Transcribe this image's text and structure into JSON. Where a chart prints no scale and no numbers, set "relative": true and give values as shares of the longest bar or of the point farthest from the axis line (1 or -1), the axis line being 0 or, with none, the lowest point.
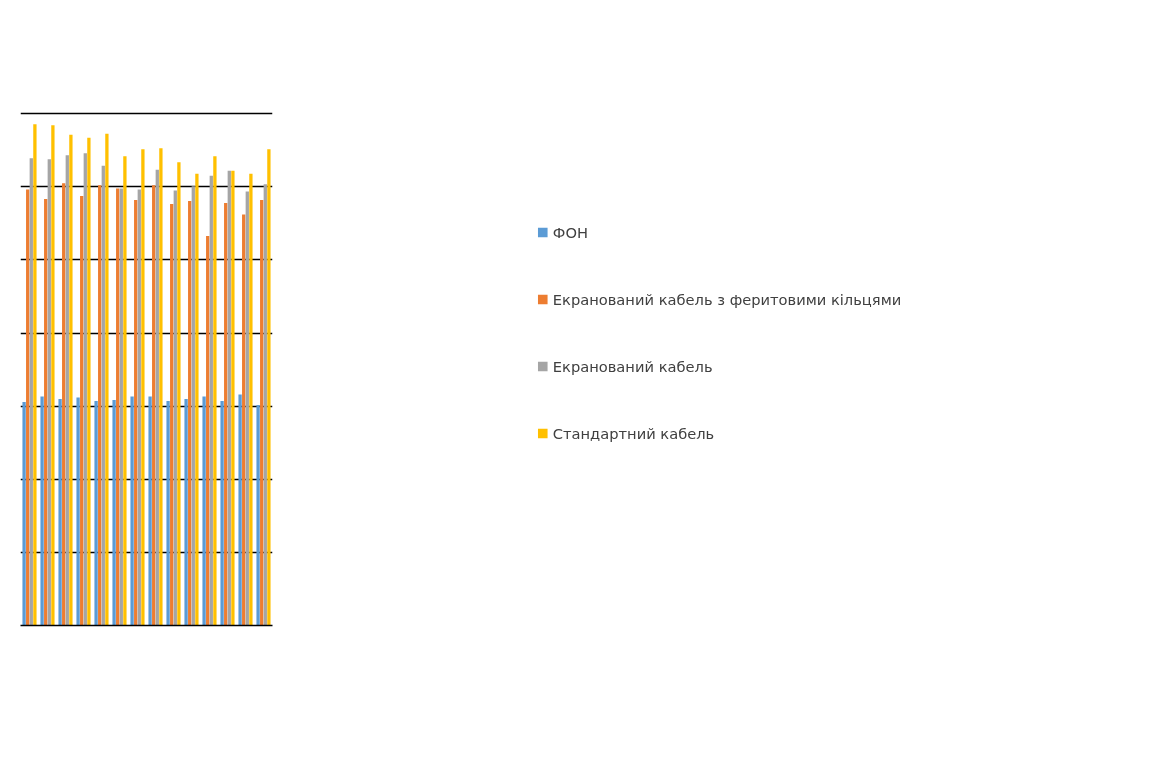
{
  "chart_data": {
    "type": "bar",
    "relative": true,
    "grid": "y",
    "legend": "right",
    "categories": [
      null,
      null,
      null,
      null,
      null,
      null,
      null,
      null,
      null,
      null,
      null,
      null,
      null,
      null
    ],
    "series": [
      {
        "name": "ФОН",
        "color": "#5b9bd5",
        "values": [
          0.446,
          0.457,
          0.452,
          0.455,
          0.448,
          0.45,
          0.457,
          0.457,
          0.448,
          0.452,
          0.457,
          0.448,
          0.461,
          0.44
        ]
      },
      {
        "name": "Екранований кабель з феритовими кільцями",
        "color": "#ed7d31",
        "values": [
          0.87,
          0.851,
          0.882,
          0.857,
          0.878,
          0.872,
          0.849,
          0.878,
          0.841,
          0.847,
          0.777,
          0.843,
          0.82,
          0.849
        ]
      },
      {
        "name": "Екранований кабель",
        "color": "#a5a5a5",
        "values": [
          0.932,
          0.93,
          0.938,
          0.942,
          0.917,
          0.872,
          0.87,
          0.909,
          0.868,
          0.876,
          0.897,
          0.907,
          0.866,
          0.88
        ]
      },
      {
        "name": "Стандартний кабель",
        "color": "#ffc000",
        "values": [
          1,
          0.998,
          0.979,
          0.973,
          0.981,
          0.936,
          0.95,
          0.952,
          0.924,
          0.901,
          0.936,
          0.907,
          0.901,
          0.95
        ]
      }
    ]
  }
}
